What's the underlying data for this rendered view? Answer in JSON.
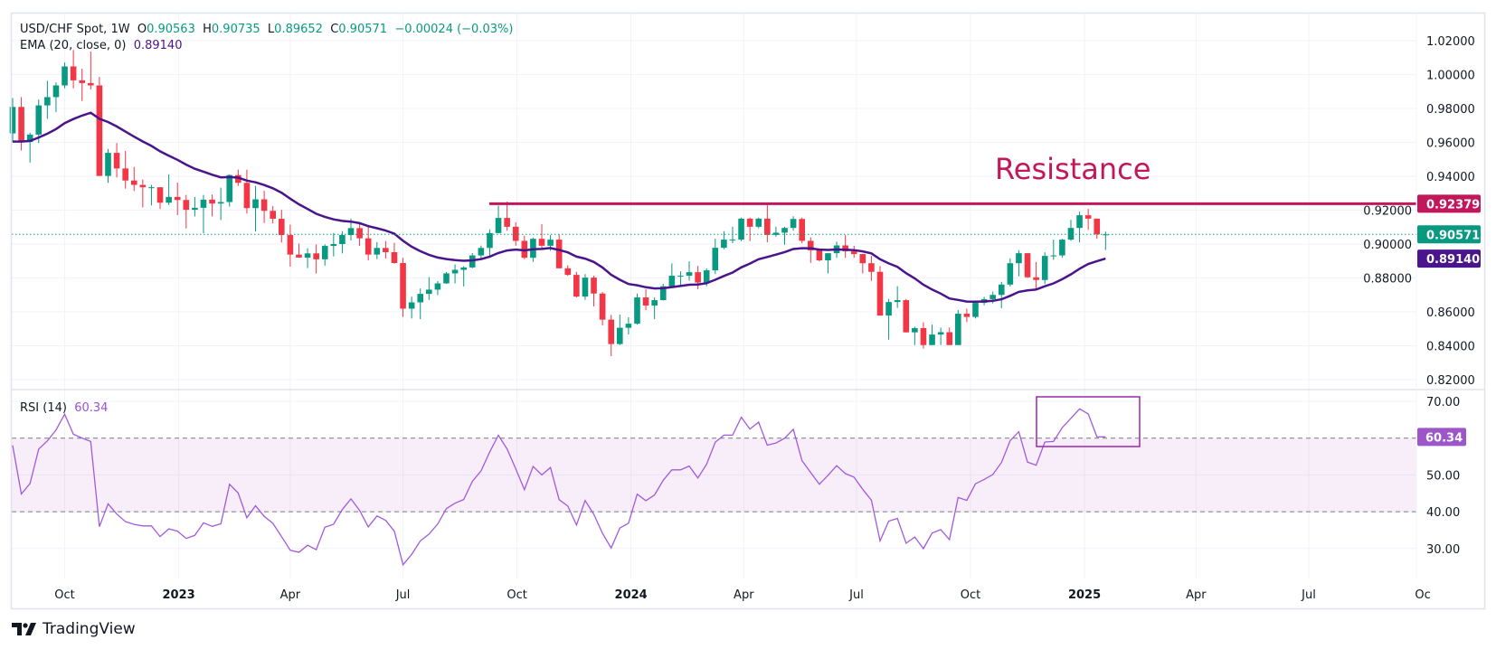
{
  "header": {
    "symbol": "USD/CHF Spot, 1W",
    "o_label": "O",
    "o": "0.90563",
    "h_label": "H",
    "h": "0.90735",
    "l_label": "L",
    "l": "0.89652",
    "c_label": "C",
    "c": "0.90571",
    "change": "−0.00024 (−0.03%)",
    "ema_label": "EMA (20, close, 0)",
    "ema_value": "0.89140",
    "rsi_label": "RSI (14)",
    "rsi_value": "60.34"
  },
  "annotation": {
    "text": "Resistance",
    "level": 0.92379,
    "level_label": "0.92379"
  },
  "badges": {
    "last_price": "0.90571",
    "ema": "0.89140",
    "rsi": "60.34"
  },
  "colors": {
    "up": "#089981",
    "down": "#f23645",
    "ema": "#4a148c",
    "resistance": "#c2185b",
    "rsi": "#a35ad8",
    "rsi_badge": "#9c56c9"
  },
  "brand": "TradingView",
  "chart_data": {
    "type": "candlestick",
    "title": "USD/CHF Spot, 1W",
    "price_axis": {
      "ticks": [
        "1.02000",
        "1.00000",
        "0.98000",
        "0.96000",
        "0.94000",
        "0.92000",
        "0.90000",
        "0.88000",
        "0.86000",
        "0.84000",
        "0.82000"
      ],
      "range": [
        0.82,
        1.02
      ]
    },
    "rsi_axis": {
      "ticks": [
        "70.00",
        "50.00",
        "40.00",
        "30.00"
      ],
      "tick_values": [
        70,
        50,
        40,
        30
      ],
      "band": [
        40,
        60
      ],
      "range": [
        22,
        72
      ]
    },
    "time_axis": [
      {
        "label": "Oct",
        "date": "2022-10-01",
        "bold": false
      },
      {
        "label": "2023",
        "date": "2023-01-01",
        "bold": true
      },
      {
        "label": "Apr",
        "date": "2023-04-01",
        "bold": false
      },
      {
        "label": "Jul",
        "date": "2023-07-01",
        "bold": false
      },
      {
        "label": "Oct",
        "date": "2023-10-01",
        "bold": false
      },
      {
        "label": "2024",
        "date": "2024-01-01",
        "bold": true
      },
      {
        "label": "Apr",
        "date": "2024-04-01",
        "bold": false
      },
      {
        "label": "Jul",
        "date": "2024-07-01",
        "bold": false
      },
      {
        "label": "Oct",
        "date": "2024-10-01",
        "bold": false
      },
      {
        "label": "2025",
        "date": "2025-01-01",
        "bold": true
      },
      {
        "label": "Apr",
        "date": "2025-04-01",
        "bold": false
      },
      {
        "label": "Jul",
        "date": "2025-07-01",
        "bold": false
      },
      {
        "label": "Oc",
        "date": "2025-10-01",
        "bold": false
      }
    ],
    "first_open": 0.9653,
    "last_open": 0.90563,
    "close": [
      0.9809,
      0.9602,
      0.9646,
      0.9818,
      0.9867,
      0.9936,
      1.0048,
      0.9966,
      0.995,
      0.9936,
      0.9402,
      0.9538,
      0.9446,
      0.9375,
      0.9349,
      0.9335,
      0.9335,
      0.9244,
      0.9278,
      0.926,
      0.9202,
      0.9214,
      0.9262,
      0.9239,
      0.9248,
      0.9407,
      0.9361,
      0.9212,
      0.9264,
      0.9196,
      0.9149,
      0.9053,
      0.8938,
      0.892,
      0.8945,
      0.891,
      0.8989,
      0.9,
      0.9053,
      0.9094,
      0.9034,
      0.8938,
      0.8977,
      0.8952,
      0.8888,
      0.8619,
      0.8656,
      0.8706,
      0.8731,
      0.8768,
      0.8827,
      0.8848,
      0.8862,
      0.8933,
      0.8977,
      0.9065,
      0.9154,
      0.9102,
      0.9019,
      0.8919,
      0.9031,
      0.899,
      0.9026,
      0.8857,
      0.8818,
      0.869,
      0.8802,
      0.8708,
      0.8554,
      0.841,
      0.8506,
      0.853,
      0.8685,
      0.8637,
      0.8669,
      0.8751,
      0.8813,
      0.8813,
      0.8834,
      0.8773,
      0.8845,
      0.8978,
      0.9026,
      0.9026,
      0.915,
      0.9102,
      0.915,
      0.9054,
      0.9067,
      0.9095,
      0.9148,
      0.9019,
      0.8963,
      0.8904,
      0.8946,
      0.8992,
      0.8957,
      0.8941,
      0.8887,
      0.8836,
      0.8578,
      0.8658,
      0.8669,
      0.8479,
      0.8504,
      0.8404,
      0.8466,
      0.848,
      0.8404,
      0.8589,
      0.857,
      0.8653,
      0.8675,
      0.87,
      0.8761,
      0.8887,
      0.8946,
      0.8804,
      0.8788,
      0.893,
      0.8933,
      0.9026,
      0.9095,
      0.917,
      0.915,
      0.9057,
      0.90571
    ],
    "high": [
      0.9862,
      0.9867,
      0.9658,
      0.9853,
      0.9963,
      0.9954,
      1.0071,
      1.0145,
      1.0034,
      1.0136,
      0.9986,
      0.9561,
      0.9596,
      0.9549,
      0.9455,
      0.9381,
      0.9349,
      0.9336,
      0.9411,
      0.9363,
      0.929,
      0.9278,
      0.929,
      0.9292,
      0.9333,
      0.9411,
      0.9439,
      0.9439,
      0.9343,
      0.9315,
      0.9225,
      0.9202,
      0.9115,
      0.9003,
      0.8975,
      0.8998,
      0.8998,
      0.9065,
      0.9076,
      0.915,
      0.9124,
      0.9113,
      0.9012,
      0.9018,
      0.9007,
      0.8919,
      0.869,
      0.8738,
      0.8805,
      0.8782,
      0.8835,
      0.888,
      0.8869,
      0.8947,
      0.8991,
      0.9087,
      0.9227,
      0.925,
      0.9129,
      0.9049,
      0.9037,
      0.9117,
      0.9053,
      0.9058,
      0.8875,
      0.8836,
      0.8823,
      0.8813,
      0.8717,
      0.8582,
      0.8584,
      0.8568,
      0.8708,
      0.8733,
      0.8685,
      0.8765,
      0.8886,
      0.8839,
      0.8898,
      0.8871,
      0.8857,
      0.9031,
      0.9076,
      0.9102,
      0.9156,
      0.9156,
      0.9156,
      0.923,
      0.9102,
      0.9102,
      0.9164,
      0.9156,
      0.904,
      0.8964,
      0.8946,
      0.9014,
      0.9053,
      0.899,
      0.893,
      0.893,
      0.8871,
      0.8676,
      0.8751,
      0.8676,
      0.8513,
      0.8538,
      0.8525,
      0.8507,
      0.8507,
      0.861,
      0.8619,
      0.8667,
      0.8688,
      0.872,
      0.8777,
      0.8916,
      0.8964,
      0.8946,
      0.8894,
      0.8951,
      0.9026,
      0.9031,
      0.9143,
      0.9191,
      0.9207,
      0.915,
      0.90735
    ],
    "low": [
      0.9602,
      0.9552,
      0.9481,
      0.9596,
      0.9738,
      0.9779,
      0.9919,
      0.9919,
      0.9844,
      0.9912,
      0.9402,
      0.9361,
      0.9393,
      0.9327,
      0.9313,
      0.9216,
      0.9228,
      0.9207,
      0.923,
      0.917,
      0.9092,
      0.9163,
      0.9064,
      0.9163,
      0.9142,
      0.9221,
      0.9343,
      0.918,
      0.9074,
      0.9124,
      0.9122,
      0.9009,
      0.8867,
      0.8919,
      0.8858,
      0.8826,
      0.8873,
      0.8927,
      0.8945,
      0.9021,
      0.8989,
      0.8904,
      0.8911,
      0.8915,
      0.8885,
      0.857,
      0.8561,
      0.8557,
      0.8671,
      0.8699,
      0.8765,
      0.8768,
      0.875,
      0.8857,
      0.8906,
      0.8933,
      0.9063,
      0.9079,
      0.899,
      0.8911,
      0.8895,
      0.8969,
      0.896,
      0.8857,
      0.8813,
      0.8685,
      0.8671,
      0.8632,
      0.852,
      0.8339,
      0.8404,
      0.8467,
      0.8525,
      0.861,
      0.8557,
      0.8667,
      0.8756,
      0.8751,
      0.8783,
      0.8733,
      0.8751,
      0.8823,
      0.8969,
      0.9005,
      0.9017,
      0.9017,
      0.9093,
      0.901,
      0.9044,
      0.8996,
      0.9079,
      0.9005,
      0.8889,
      0.8898,
      0.8827,
      0.8919,
      0.8919,
      0.8919,
      0.8827,
      0.8783,
      0.8578,
      0.8436,
      0.8623,
      0.8479,
      0.8404,
      0.8383,
      0.8427,
      0.8404,
      0.8404,
      0.8404,
      0.8539,
      0.8561,
      0.8639,
      0.865,
      0.8622,
      0.875,
      0.8809,
      0.88,
      0.8738,
      0.8764,
      0.8907,
      0.8919,
      0.9019,
      0.901,
      0.9084,
      0.9031,
      0.89652
    ],
    "ema_period": 20,
    "ema_last": 0.8914,
    "rsi_period": 14,
    "rsi_last": 60.34
  }
}
